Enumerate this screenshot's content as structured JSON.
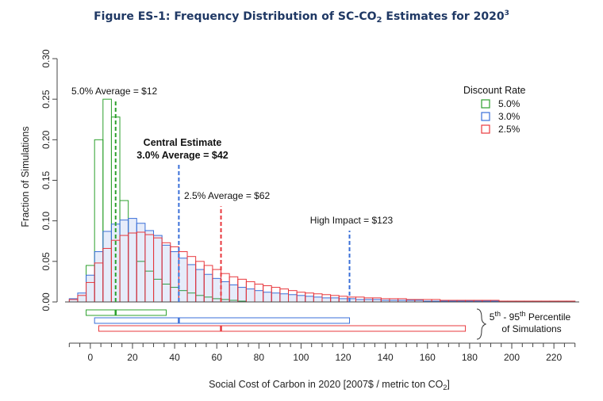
{
  "chart_data": {
    "type": "bar",
    "title": "Figure ES-1: Frequency Distribution of SC-CO",
    "title_sub": "2",
    "title_tail": " Estimates for 2020",
    "title_sup": "3",
    "xlabel": "Social Cost of Carbon in 2020 [2007$ / metric ton CO",
    "xlabel_sub": "2",
    "xlabel_tail": "]",
    "ylabel": "Fraction of Simulations",
    "xlim": [
      -12,
      232
    ],
    "ylim": [
      0,
      0.3
    ],
    "xticks": [
      "0",
      "20",
      "40",
      "60",
      "80",
      "100",
      "120",
      "140",
      "160",
      "180",
      "200",
      "220"
    ],
    "yticks": [
      "0.00",
      "0.05",
      "0.10",
      "0.15",
      "0.20",
      "0.25",
      "0.30"
    ],
    "bin_width": 4,
    "bin_start": -10,
    "legend": {
      "title": "Discount Rate",
      "entries": [
        "5.0%",
        "3.0%",
        "2.5%"
      ],
      "position": "top-right"
    },
    "series": [
      {
        "name": "5.0%",
        "color": "#2ca02c",
        "values": [
          0.0,
          0.0,
          0.045,
          0.2,
          0.25,
          0.228,
          0.125,
          0.085,
          0.05,
          0.038,
          0.028,
          0.022,
          0.018,
          0.014,
          0.011,
          0.008,
          0.006,
          0.004,
          0.003,
          0.002,
          0.001
        ],
        "average": 12,
        "percentile_range": [
          -2,
          36
        ]
      },
      {
        "name": "3.0%",
        "color": "#3a6fd8",
        "values": [
          0.004,
          0.011,
          0.033,
          0.062,
          0.087,
          0.096,
          0.101,
          0.103,
          0.097,
          0.088,
          0.082,
          0.07,
          0.062,
          0.054,
          0.046,
          0.04,
          0.034,
          0.029,
          0.025,
          0.021,
          0.018,
          0.016,
          0.014,
          0.012,
          0.011,
          0.01,
          0.009,
          0.008,
          0.007,
          0.006,
          0.005,
          0.005,
          0.004,
          0.004,
          0.003,
          0.003,
          0.003,
          0.002,
          0.002,
          0.002,
          0.002,
          0.002,
          0.001,
          0.001,
          0.001,
          0.001,
          0.001,
          0.001,
          0.001,
          0.001,
          0.001,
          0.001,
          0.001,
          0.001,
          0.001,
          0.001,
          0.001,
          0.001,
          0.001,
          0.001
        ],
        "average": 42,
        "percentile_range": [
          2,
          123
        ]
      },
      {
        "name": "2.5%",
        "color": "#e8383d",
        "values": [
          0.003,
          0.008,
          0.024,
          0.048,
          0.066,
          0.076,
          0.082,
          0.085,
          0.086,
          0.083,
          0.079,
          0.073,
          0.068,
          0.062,
          0.056,
          0.05,
          0.045,
          0.04,
          0.035,
          0.031,
          0.028,
          0.025,
          0.022,
          0.02,
          0.018,
          0.016,
          0.014,
          0.012,
          0.011,
          0.01,
          0.009,
          0.008,
          0.007,
          0.006,
          0.006,
          0.005,
          0.005,
          0.004,
          0.004,
          0.004,
          0.003,
          0.003,
          0.003,
          0.003,
          0.002,
          0.002,
          0.002,
          0.002,
          0.002,
          0.002,
          0.002,
          0.001,
          0.001,
          0.001,
          0.001,
          0.001,
          0.001,
          0.001,
          0.001,
          0.001
        ],
        "average": 62,
        "percentile_range": [
          4,
          178
        ]
      }
    ],
    "annotations": {
      "avg_5": "5.0% Average = $12",
      "central_1": "Central Estimate",
      "central_2": "3.0% Average = $42",
      "avg_25": "2.5% Average = $62",
      "high_impact": "High Impact = $123",
      "high_impact_value": 123,
      "high_impact_color": "#3a6fd8",
      "percentile_label_1": "5",
      "percentile_label_sup1": "th",
      "percentile_label_mid": " - 95",
      "percentile_label_sup2": "th",
      "percentile_label_tail": " Percentile",
      "percentile_label_2": "of Simulations"
    }
  }
}
